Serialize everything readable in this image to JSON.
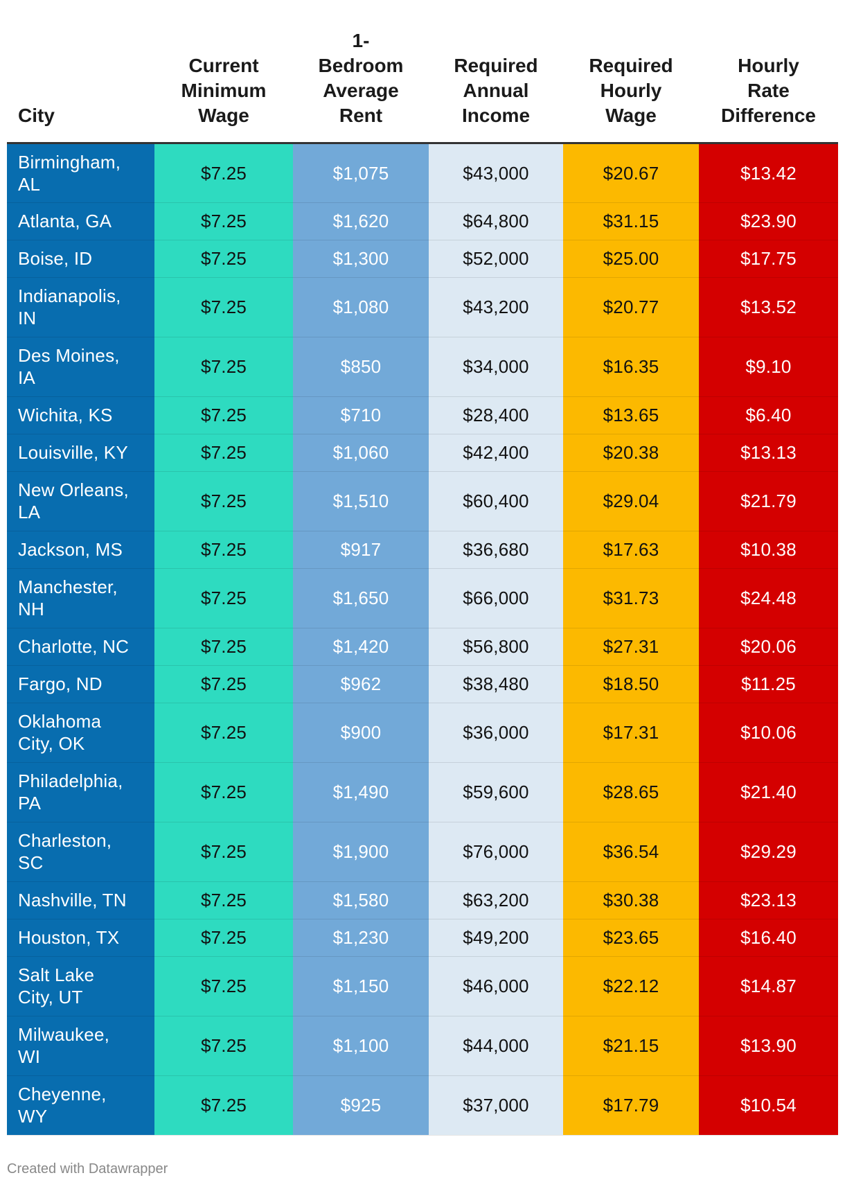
{
  "colors": {
    "city": "#086DAF",
    "min_wage": "#2EDBC0",
    "rent": "#72A9D8",
    "income": "#DDE9F3",
    "hourly_wage": "#FCB900",
    "difference": "#D40000"
  },
  "footer": {
    "credit": "Created with Datawrapper"
  },
  "chart_data": {
    "type": "table",
    "columns": [
      {
        "key": "city",
        "lines": [
          "City"
        ]
      },
      {
        "key": "min_wage",
        "lines": [
          "Current",
          "Minimum",
          "Wage"
        ]
      },
      {
        "key": "rent",
        "lines": [
          "1-",
          "Bedroom",
          "Average",
          "Rent"
        ]
      },
      {
        "key": "income",
        "lines": [
          "Required",
          "Annual",
          "Income"
        ]
      },
      {
        "key": "hourly_wage",
        "lines": [
          "Required",
          "Hourly",
          "Wage"
        ]
      },
      {
        "key": "difference",
        "lines": [
          "Hourly",
          "Rate",
          "Difference"
        ]
      }
    ],
    "rows": [
      {
        "city": [
          "Birmingham,",
          "AL"
        ],
        "min_wage": "$7.25",
        "rent": "$1,075",
        "income": "$43,000",
        "hourly_wage": "$20.67",
        "difference": "$13.42"
      },
      {
        "city": [
          "Atlanta, GA"
        ],
        "min_wage": "$7.25",
        "rent": "$1,620",
        "income": "$64,800",
        "hourly_wage": "$31.15",
        "difference": "$23.90"
      },
      {
        "city": [
          "Boise, ID"
        ],
        "min_wage": "$7.25",
        "rent": "$1,300",
        "income": "$52,000",
        "hourly_wage": "$25.00",
        "difference": "$17.75"
      },
      {
        "city": [
          "Indianapolis,",
          "IN"
        ],
        "min_wage": "$7.25",
        "rent": "$1,080",
        "income": "$43,200",
        "hourly_wage": "$20.77",
        "difference": "$13.52"
      },
      {
        "city": [
          "Des Moines,",
          "IA"
        ],
        "min_wage": "$7.25",
        "rent": "$850",
        "income": "$34,000",
        "hourly_wage": "$16.35",
        "difference": "$9.10"
      },
      {
        "city": [
          "Wichita, KS"
        ],
        "min_wage": "$7.25",
        "rent": "$710",
        "income": "$28,400",
        "hourly_wage": "$13.65",
        "difference": "$6.40"
      },
      {
        "city": [
          "Louisville, KY"
        ],
        "min_wage": "$7.25",
        "rent": "$1,060",
        "income": "$42,400",
        "hourly_wage": "$20.38",
        "difference": "$13.13"
      },
      {
        "city": [
          "New Orleans,",
          "LA"
        ],
        "min_wage": "$7.25",
        "rent": "$1,510",
        "income": "$60,400",
        "hourly_wage": "$29.04",
        "difference": "$21.79"
      },
      {
        "city": [
          "Jackson, MS"
        ],
        "min_wage": "$7.25",
        "rent": "$917",
        "income": "$36,680",
        "hourly_wage": "$17.63",
        "difference": "$10.38"
      },
      {
        "city": [
          "Manchester,",
          "NH"
        ],
        "min_wage": "$7.25",
        "rent": "$1,650",
        "income": "$66,000",
        "hourly_wage": "$31.73",
        "difference": "$24.48"
      },
      {
        "city": [
          "Charlotte, NC"
        ],
        "min_wage": "$7.25",
        "rent": "$1,420",
        "income": "$56,800",
        "hourly_wage": "$27.31",
        "difference": "$20.06"
      },
      {
        "city": [
          "Fargo, ND"
        ],
        "min_wage": "$7.25",
        "rent": "$962",
        "income": "$38,480",
        "hourly_wage": "$18.50",
        "difference": "$11.25"
      },
      {
        "city": [
          "Oklahoma",
          "City, OK"
        ],
        "min_wage": "$7.25",
        "rent": "$900",
        "income": "$36,000",
        "hourly_wage": "$17.31",
        "difference": "$10.06"
      },
      {
        "city": [
          "Philadelphia,",
          "PA"
        ],
        "min_wage": "$7.25",
        "rent": "$1,490",
        "income": "$59,600",
        "hourly_wage": "$28.65",
        "difference": "$21.40"
      },
      {
        "city": [
          "Charleston,",
          "SC"
        ],
        "min_wage": "$7.25",
        "rent": "$1,900",
        "income": "$76,000",
        "hourly_wage": "$36.54",
        "difference": "$29.29"
      },
      {
        "city": [
          "Nashville, TN"
        ],
        "min_wage": "$7.25",
        "rent": "$1,580",
        "income": "$63,200",
        "hourly_wage": "$30.38",
        "difference": "$23.13"
      },
      {
        "city": [
          "Houston, TX"
        ],
        "min_wage": "$7.25",
        "rent": "$1,230",
        "income": "$49,200",
        "hourly_wage": "$23.65",
        "difference": "$16.40"
      },
      {
        "city": [
          "Salt Lake",
          "City, UT"
        ],
        "min_wage": "$7.25",
        "rent": "$1,150",
        "income": "$46,000",
        "hourly_wage": "$22.12",
        "difference": "$14.87"
      },
      {
        "city": [
          "Milwaukee,",
          "WI"
        ],
        "min_wage": "$7.25",
        "rent": "$1,100",
        "income": "$44,000",
        "hourly_wage": "$21.15",
        "difference": "$13.90"
      },
      {
        "city": [
          "Cheyenne,",
          "WY"
        ],
        "min_wage": "$7.25",
        "rent": "$925",
        "income": "$37,000",
        "hourly_wage": "$17.79",
        "difference": "$10.54"
      }
    ]
  }
}
